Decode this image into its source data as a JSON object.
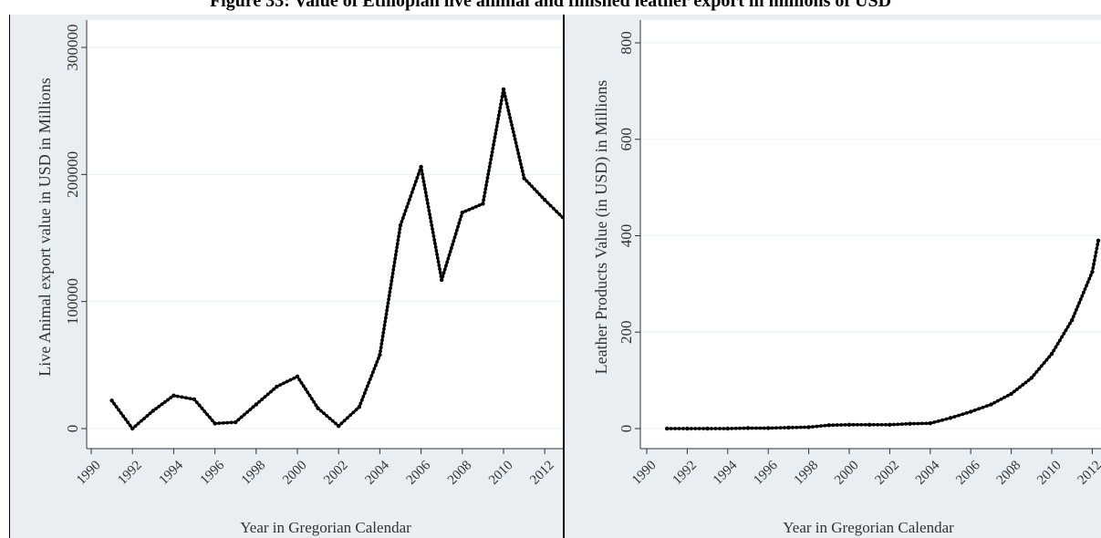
{
  "figure_title": "Figure 33: Value of Ethiopian live animal and finished leather export in millions of USD",
  "colors": {
    "panel_bg": "#e9eef2",
    "plot_bg": "#ffffff",
    "line": "#000000",
    "grid": "#eaf0f4"
  },
  "chart_data": [
    {
      "type": "line",
      "ylabel": "Live Animal export value in USD in Millions",
      "xlabel": "Year in Gregorian Calendar",
      "xlim": [
        1990,
        2012
      ],
      "ylim": [
        0,
        300000
      ],
      "x_ticks": [
        1990,
        1992,
        1994,
        1996,
        1998,
        2000,
        2002,
        2004,
        2006,
        2008,
        2010,
        2012
      ],
      "y_ticks": [
        0,
        100000,
        200000,
        300000
      ],
      "grid": true,
      "series": [
        {
          "x": [
            1991,
            1992,
            1993,
            1994,
            1995,
            1996,
            1997,
            1998,
            1999,
            2000,
            2001,
            2002,
            2003,
            2004,
            2005,
            2006,
            2007,
            2008,
            2009,
            2010,
            2011,
            2012,
            2013
          ],
          "y": [
            22000,
            0,
            14000,
            26000,
            23000,
            4000,
            5000,
            19000,
            33000,
            41000,
            16000,
            2000,
            17000,
            58000,
            160000,
            206000,
            117000,
            170000,
            177000,
            267000,
            197000,
            180000,
            164000
          ],
          "markers": "small dots"
        }
      ]
    },
    {
      "type": "line",
      "ylabel": "Leather Products Value (in USD) in Millions",
      "xlabel": "Year in Gregorian Calendar",
      "xlim": [
        1990,
        2012
      ],
      "ylim": [
        0,
        800
      ],
      "x_ticks": [
        1990,
        1992,
        1994,
        1996,
        1998,
        2000,
        2002,
        2004,
        2006,
        2008,
        2010,
        2012
      ],
      "y_ticks": [
        0,
        200,
        400,
        600,
        800
      ],
      "grid": true,
      "series": [
        {
          "x": [
            1991,
            1992,
            1993,
            1994,
            1995,
            1996,
            1997,
            1998,
            1999,
            2000,
            2001,
            2002,
            2003,
            2004,
            2005,
            2006,
            2007,
            2008,
            2009,
            2010,
            2011,
            2012,
            2012.3
          ],
          "y": [
            0,
            0,
            0,
            0,
            1,
            1,
            2,
            3,
            7,
            8,
            8,
            8,
            10,
            11,
            22,
            35,
            50,
            72,
            105,
            155,
            225,
            325,
            390
          ],
          "markers": "small dots"
        }
      ]
    }
  ]
}
